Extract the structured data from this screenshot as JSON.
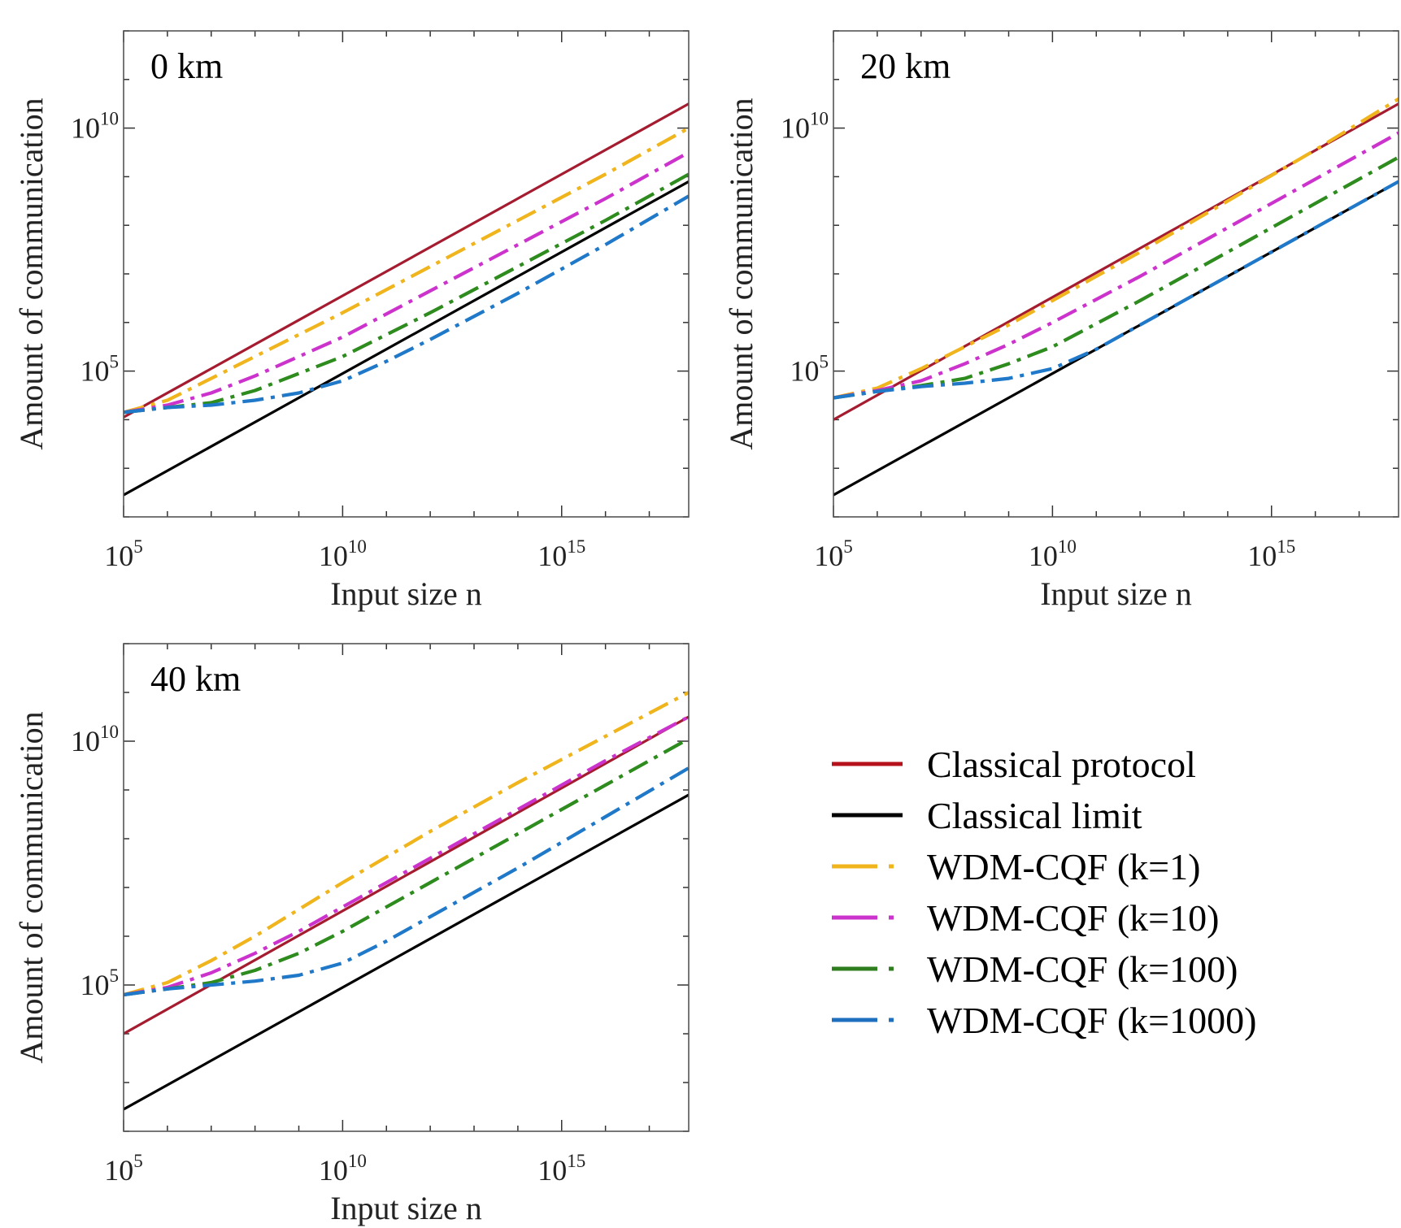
{
  "chart_data": [
    {
      "type": "line",
      "title": "0 km",
      "xlabel": "Input size n",
      "ylabel": "Amount of communication",
      "xscale": "log10",
      "yscale": "log10",
      "xlim_exp": [
        5,
        17.9
      ],
      "ylim_exp": [
        2,
        12
      ],
      "xticks": [
        {
          "base": "10",
          "exp": "5"
        },
        {
          "base": "10",
          "exp": "10"
        },
        {
          "base": "10",
          "exp": "15"
        }
      ],
      "yticks": [
        {
          "base": "10",
          "exp": "5",
          "value": 5
        },
        {
          "base": "10",
          "exp": "10",
          "value": 10
        }
      ],
      "grid": false,
      "series": [
        {
          "name": "Classical protocol",
          "x": [
            5,
            17.9
          ],
          "y": [
            4.05,
            10.5
          ]
        },
        {
          "name": "Classical limit",
          "x": [
            5,
            17.9
          ],
          "y": [
            2.45,
            8.9
          ]
        },
        {
          "name": "WDM-CQF (k=1)",
          "x": [
            5,
            6,
            7,
            8,
            9,
            10,
            12,
            14,
            16,
            17.9
          ],
          "y": [
            4.15,
            4.4,
            4.85,
            5.3,
            5.75,
            6.2,
            7.15,
            8.1,
            9.05,
            10.0
          ]
        },
        {
          "name": "WDM-CQF (k=10)",
          "x": [
            5,
            6,
            7,
            8,
            9,
            10,
            12,
            14,
            16,
            17.9
          ],
          "y": [
            4.15,
            4.3,
            4.55,
            4.9,
            5.3,
            5.7,
            6.65,
            7.6,
            8.55,
            9.5
          ]
        },
        {
          "name": "WDM-CQF (k=100)",
          "x": [
            5,
            6,
            7,
            8,
            9,
            10,
            12,
            14,
            16,
            17.9
          ],
          "y": [
            4.15,
            4.25,
            4.35,
            4.6,
            4.95,
            5.3,
            6.2,
            7.15,
            8.1,
            9.05
          ]
        },
        {
          "name": "WDM-CQF (k=1000)",
          "x": [
            5,
            6,
            7,
            8,
            9,
            10,
            11,
            12,
            14,
            16,
            17.9
          ],
          "y": [
            4.15,
            4.25,
            4.3,
            4.4,
            4.55,
            4.8,
            5.2,
            5.65,
            6.6,
            7.6,
            8.6
          ]
        }
      ]
    },
    {
      "type": "line",
      "title": "20 km",
      "xlabel": "Input size n",
      "ylabel": "Amount of communication",
      "xscale": "log10",
      "yscale": "log10",
      "xlim_exp": [
        5,
        17.9
      ],
      "ylim_exp": [
        2,
        12
      ],
      "xticks": [
        {
          "base": "10",
          "exp": "5"
        },
        {
          "base": "10",
          "exp": "10"
        },
        {
          "base": "10",
          "exp": "15"
        }
      ],
      "yticks": [
        {
          "base": "10",
          "exp": "5",
          "value": 5
        },
        {
          "base": "10",
          "exp": "10",
          "value": 10
        }
      ],
      "grid": false,
      "series": [
        {
          "name": "Classical protocol",
          "x": [
            5,
            17.9
          ],
          "y": [
            4.0,
            10.5
          ]
        },
        {
          "name": "Classical limit",
          "x": [
            5,
            17.9
          ],
          "y": [
            2.45,
            8.9
          ]
        },
        {
          "name": "WDM-CQF (k=1)",
          "x": [
            5,
            6,
            7,
            8,
            9,
            10,
            12,
            14,
            16,
            17.9
          ],
          "y": [
            4.45,
            4.65,
            5.05,
            5.5,
            5.95,
            6.45,
            7.45,
            8.5,
            9.55,
            10.6
          ]
        },
        {
          "name": "WDM-CQF (k=10)",
          "x": [
            5,
            6,
            7,
            8,
            9,
            10,
            12,
            14,
            16,
            17.9
          ],
          "y": [
            4.45,
            4.6,
            4.8,
            5.15,
            5.55,
            6.0,
            6.95,
            7.95,
            8.95,
            9.9
          ]
        },
        {
          "name": "WDM-CQF (k=100)",
          "x": [
            5,
            6,
            7,
            8,
            9,
            10,
            12,
            14,
            16,
            17.9
          ],
          "y": [
            4.45,
            4.58,
            4.7,
            4.85,
            5.15,
            5.5,
            6.45,
            7.45,
            8.45,
            9.4
          ]
        },
        {
          "name": "WDM-CQF (k=1000)",
          "x": [
            5,
            6,
            7,
            8,
            9,
            10,
            11,
            12,
            14,
            16,
            17.9
          ],
          "y": [
            4.45,
            4.58,
            4.68,
            4.75,
            4.85,
            5.05,
            5.45,
            5.95,
            6.95,
            7.95,
            8.9
          ]
        }
      ]
    },
    {
      "type": "line",
      "title": "40 km",
      "xlabel": "Input size n",
      "ylabel": "Amount of communication",
      "xscale": "log10",
      "yscale": "log10",
      "xlim_exp": [
        5,
        17.9
      ],
      "ylim_exp": [
        2,
        12
      ],
      "xticks": [
        {
          "base": "10",
          "exp": "5"
        },
        {
          "base": "10",
          "exp": "10"
        },
        {
          "base": "10",
          "exp": "15"
        }
      ],
      "yticks": [
        {
          "base": "10",
          "exp": "5",
          "value": 5
        },
        {
          "base": "10",
          "exp": "10",
          "value": 10
        }
      ],
      "grid": false,
      "series": [
        {
          "name": "Classical protocol",
          "x": [
            5,
            17.9
          ],
          "y": [
            4.0,
            10.5
          ]
        },
        {
          "name": "Classical limit",
          "x": [
            5,
            17.9
          ],
          "y": [
            2.45,
            8.9
          ]
        },
        {
          "name": "WDM-CQF (k=1)",
          "x": [
            5,
            6,
            7,
            8,
            9,
            10,
            12,
            14,
            16,
            17.9
          ],
          "y": [
            4.8,
            5.05,
            5.5,
            6.0,
            6.55,
            7.1,
            8.15,
            9.15,
            10.1,
            11.0
          ]
        },
        {
          "name": "WDM-CQF (k=10)",
          "x": [
            5,
            6,
            7,
            8,
            9,
            10,
            12,
            14,
            16,
            17.9
          ],
          "y": [
            4.8,
            4.95,
            5.25,
            5.65,
            6.1,
            6.6,
            7.6,
            8.6,
            9.6,
            10.5
          ]
        },
        {
          "name": "WDM-CQF (k=100)",
          "x": [
            5,
            6,
            7,
            8,
            9,
            10,
            12,
            14,
            16,
            17.9
          ],
          "y": [
            4.8,
            4.92,
            5.05,
            5.3,
            5.65,
            6.1,
            7.1,
            8.1,
            9.1,
            10.05
          ]
        },
        {
          "name": "WDM-CQF (k=1000)",
          "x": [
            5,
            6,
            7,
            8,
            9,
            10,
            11,
            12,
            14,
            16,
            17.9
          ],
          "y": [
            4.8,
            4.92,
            5.0,
            5.08,
            5.2,
            5.45,
            5.9,
            6.4,
            7.4,
            8.45,
            9.45
          ]
        }
      ]
    }
  ],
  "legend": {
    "position": "bottom-right",
    "items": [
      {
        "label": "Classical protocol",
        "color": "#b5121b",
        "style": "solid"
      },
      {
        "label": "Classical limit",
        "color": "#000000",
        "style": "solid"
      },
      {
        "label": "WDM-CQF (k=1)",
        "color": "#f0b41c",
        "style": "dashdot"
      },
      {
        "label": "WDM-CQF (k=10)",
        "color": "#cc33cc",
        "style": "dashdot"
      },
      {
        "label": "WDM-CQF (k=100)",
        "color": "#2e7d1e",
        "style": "dashdot"
      },
      {
        "label": "WDM-CQF (k=1000)",
        "color": "#1f6fbf",
        "style": "dashdot"
      }
    ]
  },
  "series_colors": {
    "Classical protocol": "#a51c30",
    "Classical limit": "#000000",
    "WDM-CQF (k=1)": "#f0b41c",
    "WDM-CQF (k=10)": "#cc33cc",
    "WDM-CQF (k=100)": "#2e8b1e",
    "WDM-CQF (k=1000)": "#1f78c8"
  }
}
